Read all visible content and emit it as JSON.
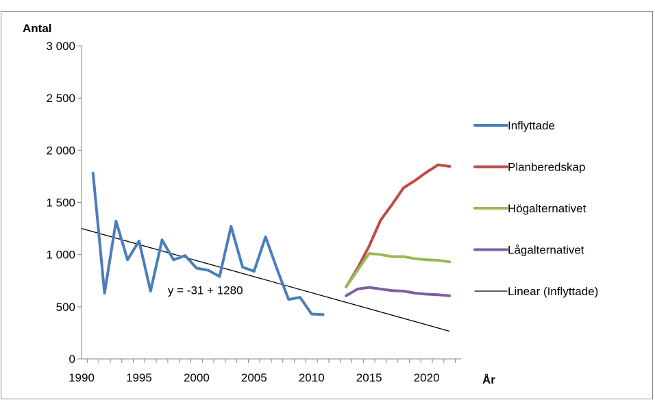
{
  "chart_data": {
    "type": "line",
    "title": "",
    "ylabel": "Antal",
    "xlabel": "År",
    "xlim": [
      1990,
      2023
    ],
    "ylim": [
      0,
      3000
    ],
    "x_ticks": [
      1990,
      1995,
      2000,
      2005,
      2010,
      2015,
      2020
    ],
    "y_ticks": [
      0,
      500,
      1000,
      1500,
      2000,
      2500,
      3000
    ],
    "y_tick_labels": [
      "0",
      "500",
      "1 000",
      "1 500",
      "2 000",
      "2 500",
      "3 000"
    ],
    "grid": {
      "horizontal": false,
      "vertical": false
    },
    "legend_position": "right",
    "series": [
      {
        "name": "Inflyttade",
        "color": "#4a7ebb",
        "x": [
          1991,
          1992,
          1993,
          1994,
          1995,
          1996,
          1997,
          1998,
          1999,
          2000,
          2001,
          2002,
          2003,
          2004,
          2005,
          2006,
          2007,
          2008,
          2009,
          2010,
          2011
        ],
        "y": [
          1780,
          630,
          1320,
          950,
          1130,
          650,
          1140,
          950,
          990,
          870,
          850,
          790,
          1270,
          880,
          840,
          1170,
          860,
          570,
          590,
          430,
          425
        ]
      },
      {
        "name": "Planberedskap",
        "color": "#be4b48",
        "x": [
          2013,
          2014,
          2015,
          2016,
          2017,
          2018,
          2019,
          2020,
          2021,
          2022
        ],
        "y": [
          690,
          870,
          1080,
          1330,
          1480,
          1640,
          1710,
          1790,
          1860,
          1845
        ]
      },
      {
        "name": "Högalternativet",
        "color": "#98b954",
        "x": [
          2013,
          2014,
          2015,
          2016,
          2017,
          2018,
          2019,
          2020,
          2021,
          2022
        ],
        "y": [
          690,
          850,
          1010,
          1000,
          980,
          980,
          960,
          950,
          945,
          930
        ]
      },
      {
        "name": "Lågalternativet",
        "color": "#7d60a0",
        "x": [
          2013,
          2014,
          2015,
          2016,
          2017,
          2018,
          2019,
          2020,
          2021,
          2022
        ],
        "y": [
          605,
          670,
          685,
          670,
          655,
          650,
          630,
          620,
          615,
          605
        ]
      }
    ],
    "trendline": {
      "name": "Linear (Inflyttade)",
      "color": "#000000",
      "x": [
        1990,
        2022
      ],
      "y": [
        1250,
        265
      ],
      "equation": "y = -31 + 1280",
      "equation_x": 1997.5,
      "equation_y": 620
    }
  }
}
